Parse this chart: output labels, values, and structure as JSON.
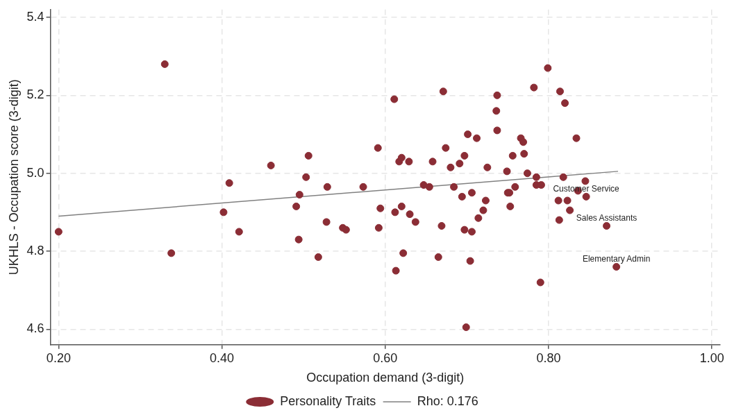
{
  "chart_data": {
    "type": "scatter",
    "xlabel": "Occupation demand (3-digit)",
    "ylabel": "UKHLS - Occupation score (3-digit)",
    "xlim": [
      0.19,
      1.01
    ],
    "ylim": [
      4.56,
      5.42
    ],
    "xticks": [
      {
        "value": 0.2,
        "label": "0.20"
      },
      {
        "value": 0.4,
        "label": "0.40"
      },
      {
        "value": 0.6,
        "label": "0.60"
      },
      {
        "value": 0.8,
        "label": "0.80"
      },
      {
        "value": 1.0,
        "label": "1.00"
      }
    ],
    "yticks": [
      {
        "value": 4.6,
        "label": "4.6"
      },
      {
        "value": 4.8,
        "label": "4.8"
      },
      {
        "value": 5.0,
        "label": "5.0"
      },
      {
        "value": 5.2,
        "label": "5.2"
      },
      {
        "value": 5.4,
        "label": "5.4"
      }
    ],
    "grid": true,
    "legend": "bottom",
    "marker": "circle",
    "series": [
      {
        "name": "Personality Traits",
        "color": "#8b2d35",
        "x": [
          0.2,
          0.33,
          0.338,
          0.402,
          0.409,
          0.421,
          0.46,
          0.491,
          0.494,
          0.495,
          0.503,
          0.506,
          0.518,
          0.528,
          0.529,
          0.548,
          0.552,
          0.573,
          0.591,
          0.592,
          0.594,
          0.611,
          0.612,
          0.613,
          0.617,
          0.62,
          0.62,
          0.622,
          0.629,
          0.63,
          0.637,
          0.647,
          0.654,
          0.658,
          0.665,
          0.669,
          0.671,
          0.674,
          0.68,
          0.684,
          0.691,
          0.694,
          0.697,
          0.697,
          0.699,
          0.701,
          0.704,
          0.706,
          0.706,
          0.712,
          0.714,
          0.72,
          0.723,
          0.725,
          0.736,
          0.737,
          0.737,
          0.749,
          0.75,
          0.752,
          0.753,
          0.756,
          0.759,
          0.766,
          0.769,
          0.77,
          0.774,
          0.782,
          0.785,
          0.785,
          0.79,
          0.791,
          0.799,
          0.812,
          0.813,
          0.814,
          0.818,
          0.82,
          0.823,
          0.826,
          0.834,
          0.836,
          0.845,
          0.846,
          0.871,
          0.883
        ],
        "values": [
          4.85,
          5.28,
          4.795,
          4.9,
          4.975,
          4.85,
          5.02,
          4.915,
          4.83,
          4.945,
          4.99,
          5.045,
          4.785,
          4.875,
          4.965,
          4.86,
          4.855,
          4.965,
          5.065,
          4.86,
          4.91,
          5.19,
          4.9,
          4.75,
          5.03,
          5.04,
          4.915,
          4.795,
          5.03,
          4.895,
          4.875,
          4.97,
          4.965,
          5.03,
          4.785,
          4.865,
          5.21,
          5.065,
          5.015,
          4.965,
          5.025,
          4.94,
          5.045,
          4.855,
          4.605,
          5.1,
          4.775,
          4.95,
          4.85,
          5.09,
          4.885,
          4.905,
          4.93,
          5.015,
          5.16,
          5.11,
          5.2,
          5.005,
          4.95,
          4.95,
          4.915,
          5.045,
          4.965,
          5.09,
          5.08,
          5.05,
          5.0,
          5.22,
          4.99,
          4.97,
          4.72,
          4.97,
          5.27,
          4.93,
          4.88,
          5.21,
          4.99,
          5.18,
          4.93,
          4.905,
          5.09,
          4.955,
          4.98,
          4.94,
          4.865,
          4.76
        ]
      },
      {
        "name": "Rho: 0.176",
        "type": "line",
        "marker": "none",
        "color": "#808080",
        "x": [
          0.2,
          0.885
        ],
        "values": [
          4.89,
          5.005
        ]
      }
    ],
    "annotations": [
      {
        "text": "Customer Service",
        "x": 0.846,
        "y": 4.94
      },
      {
        "text": "Sales Assistants",
        "x": 0.871,
        "y": 4.865
      },
      {
        "text": "Elementary Admin",
        "x": 0.883,
        "y": 4.76
      }
    ]
  }
}
